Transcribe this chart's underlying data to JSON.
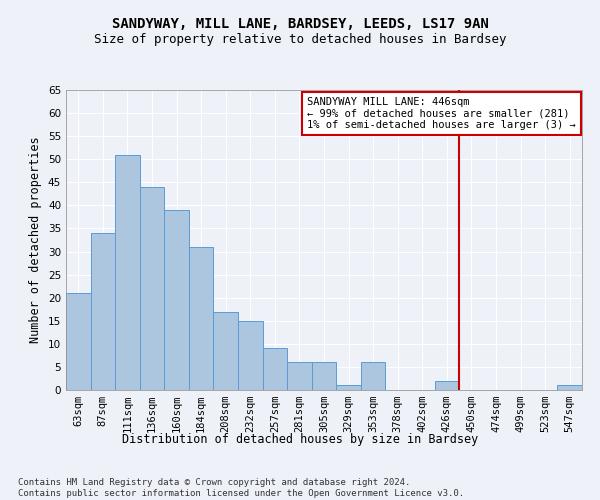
{
  "title": "SANDYWAY, MILL LANE, BARDSEY, LEEDS, LS17 9AN",
  "subtitle": "Size of property relative to detached houses in Bardsey",
  "xlabel": "Distribution of detached houses by size in Bardsey",
  "ylabel": "Number of detached properties",
  "categories": [
    "63sqm",
    "87sqm",
    "111sqm",
    "136sqm",
    "160sqm",
    "184sqm",
    "208sqm",
    "232sqm",
    "257sqm",
    "281sqm",
    "305sqm",
    "329sqm",
    "353sqm",
    "378sqm",
    "402sqm",
    "426sqm",
    "450sqm",
    "474sqm",
    "499sqm",
    "523sqm",
    "547sqm"
  ],
  "values": [
    21,
    34,
    51,
    44,
    39,
    31,
    17,
    15,
    9,
    6,
    6,
    1,
    6,
    0,
    0,
    2,
    0,
    0,
    0,
    0,
    1
  ],
  "bar_color": "#adc6e0",
  "bar_edge_color": "#5b9bd5",
  "ylim": [
    0,
    65
  ],
  "yticks": [
    0,
    5,
    10,
    15,
    20,
    25,
    30,
    35,
    40,
    45,
    50,
    55,
    60,
    65
  ],
  "vline_x": 15.5,
  "vline_color": "#cc0000",
  "annotation_title": "SANDYWAY MILL LANE: 446sqm",
  "annotation_line1": "← 99% of detached houses are smaller (281)",
  "annotation_line2": "1% of semi-detached houses are larger (3) →",
  "annotation_box_color": "#cc0000",
  "footer_line1": "Contains HM Land Registry data © Crown copyright and database right 2024.",
  "footer_line2": "Contains public sector information licensed under the Open Government Licence v3.0.",
  "background_color": "#eef2f8",
  "grid_color": "#ffffff",
  "title_fontsize": 10,
  "subtitle_fontsize": 9,
  "axis_label_fontsize": 8.5,
  "tick_fontsize": 7.5,
  "annotation_fontsize": 7.5,
  "footer_fontsize": 6.5
}
